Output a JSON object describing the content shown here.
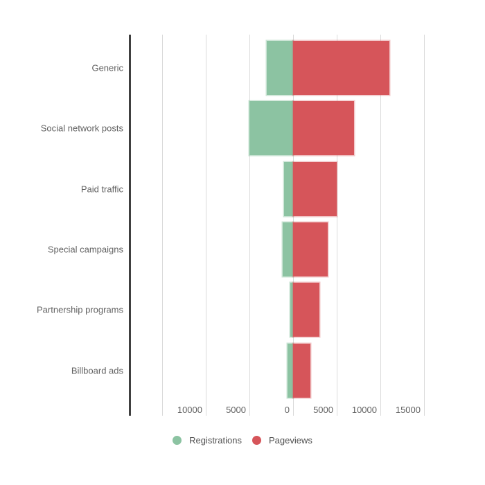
{
  "chart_data": {
    "type": "bar",
    "variant": "diverging-horizontal",
    "title": "",
    "categories": [
      "Generic",
      "Social network posts",
      "Paid traffic",
      "Special campaigns",
      "Partnership programs",
      "Billboard ads"
    ],
    "series": [
      {
        "name": "Registrations",
        "direction": "left",
        "color": "#8CC3A2",
        "values": [
          3000,
          5000,
          1000,
          1200,
          300,
          600
        ]
      },
      {
        "name": "Pageviews",
        "direction": "right",
        "color": "#D6555A",
        "values": [
          11000,
          7000,
          5000,
          4000,
          3000,
          2000
        ]
      }
    ],
    "x_axis": {
      "range": [
        -15000,
        15000
      ],
      "grid": true,
      "ticks": [
        {
          "value": -15000,
          "label": ""
        },
        {
          "value": -10000,
          "label": "10000"
        },
        {
          "value": -5000,
          "label": "5000"
        },
        {
          "value": 0,
          "label": "0"
        },
        {
          "value": 5000,
          "label": "5000"
        },
        {
          "value": 10000,
          "label": "10000"
        },
        {
          "value": 15000,
          "label": "15000"
        }
      ]
    },
    "legend": {
      "position": "bottom",
      "items": [
        {
          "label": "Registrations",
          "color": "#8CC3A2"
        },
        {
          "label": "Pageviews",
          "color": "#D6555A"
        }
      ]
    },
    "colors": {
      "background": "#ffffff",
      "gridline": "#dadada",
      "axis_line": "#404040",
      "label_text": "#616161",
      "legend_text": "#4f4f4f"
    }
  }
}
